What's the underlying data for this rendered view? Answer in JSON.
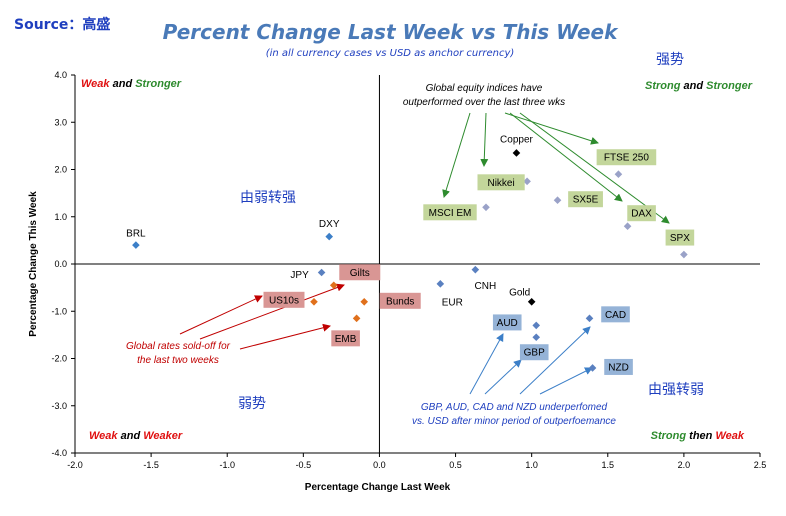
{
  "source": "Source：高盛",
  "chart_data": {
    "type": "scatter",
    "title": "Percent Change Last Week vs This Week",
    "subtitle": "(in all currency cases vs USD as anchor currency)",
    "xlabel": "Percentage Change Last Week",
    "ylabel": "Percentage Change This Week",
    "xlim": [
      -2.0,
      2.5
    ],
    "ylim": [
      -4.0,
      4.0
    ],
    "xticks": [
      "-2.0",
      "-1.5",
      "-1.0",
      "-0.5",
      "0.0",
      "0.5",
      "1.0",
      "1.5",
      "2.0",
      "2.5"
    ],
    "yticks": [
      "4.0",
      "3.0",
      "2.0",
      "1.0",
      "0.0",
      "-1.0",
      "-2.0",
      "-3.0",
      "-4.0"
    ],
    "grid": false,
    "points": [
      {
        "label": "BRL",
        "x": -1.6,
        "y": 0.4,
        "color": "#3c7fc8",
        "boxed": false
      },
      {
        "label": "DXY",
        "x": -0.33,
        "y": 0.58,
        "color": "#3c7fc8",
        "boxed": false
      },
      {
        "label": "JPY",
        "x": -0.38,
        "y": -0.18,
        "color": "#5a80c0",
        "boxed": false
      },
      {
        "label": "US10s",
        "x": -0.43,
        "y": -0.8,
        "color": "#e0701c",
        "boxed": true,
        "box_color": "#d99694"
      },
      {
        "label": "Gilts",
        "x": -0.3,
        "y": -0.45,
        "color": "#e0701c",
        "boxed": true,
        "box_color": "#d99694"
      },
      {
        "label": "Bunds",
        "x": -0.1,
        "y": -0.8,
        "color": "#e0701c",
        "boxed": true,
        "box_color": "#d99694"
      },
      {
        "label": "EMB",
        "x": -0.15,
        "y": -1.15,
        "color": "#e0701c",
        "boxed": true,
        "box_color": "#d99694"
      },
      {
        "label": "EUR",
        "x": 0.4,
        "y": -0.42,
        "color": "#5a80c0",
        "boxed": false
      },
      {
        "label": "CNH",
        "x": 0.63,
        "y": -0.12,
        "color": "#5a80c0",
        "boxed": false
      },
      {
        "label": "Gold",
        "x": 1.0,
        "y": -0.8,
        "color": "#000000",
        "boxed": false
      },
      {
        "label": "Copper",
        "x": 0.9,
        "y": 2.35,
        "color": "#000000",
        "boxed": false
      },
      {
        "label": "Nikkei",
        "x": 0.97,
        "y": 1.75,
        "color": "#9aa2c8",
        "boxed": true,
        "box_color": "#c3d69b"
      },
      {
        "label": "MSCI EM",
        "x": 0.7,
        "y": 1.2,
        "color": "#9aa2c8",
        "boxed": true,
        "box_color": "#c3d69b"
      },
      {
        "label": "SX5E",
        "x": 1.17,
        "y": 1.35,
        "color": "#9aa2c8",
        "boxed": true,
        "box_color": "#c3d69b"
      },
      {
        "label": "FTSE 250",
        "x": 1.57,
        "y": 1.9,
        "color": "#9aa2c8",
        "boxed": true,
        "box_color": "#c3d69b"
      },
      {
        "label": "DAX",
        "x": 1.63,
        "y": 0.8,
        "color": "#9aa2c8",
        "boxed": true,
        "box_color": "#c3d69b"
      },
      {
        "label": "SPX",
        "x": 2.0,
        "y": 0.2,
        "color": "#9aa2c8",
        "boxed": true,
        "box_color": "#c3d69b"
      },
      {
        "label": "AUD",
        "x": 1.03,
        "y": -1.3,
        "color": "#5a80c0",
        "boxed": true,
        "box_color": "#95b3d7"
      },
      {
        "label": "GBP",
        "x": 1.03,
        "y": -1.55,
        "color": "#5a80c0",
        "boxed": true,
        "box_color": "#95b3d7"
      },
      {
        "label": "CAD",
        "x": 1.38,
        "y": -1.15,
        "color": "#5a80c0",
        "boxed": true,
        "box_color": "#95b3d7"
      },
      {
        "label": "NZD",
        "x": 1.4,
        "y": -2.2,
        "color": "#5a80c0",
        "boxed": true,
        "box_color": "#95b3d7"
      }
    ],
    "quadrant_labels": {
      "top_left": [
        {
          "text": "Weak",
          "color": "#e01010"
        },
        {
          "text": " and ",
          "color": "#000000"
        },
        {
          "text": "Stronger",
          "color": "#2e8b2e"
        }
      ],
      "top_right": [
        {
          "text": "Strong",
          "color": "#2e8b2e"
        },
        {
          "text": " and ",
          "color": "#000000"
        },
        {
          "text": "Stronger",
          "color": "#2e8b2e"
        }
      ],
      "bottom_left": [
        {
          "text": "Weak",
          "color": "#e01010"
        },
        {
          "text": " and ",
          "color": "#000000"
        },
        {
          "text": "Weaker",
          "color": "#e01010"
        }
      ],
      "bottom_right": [
        {
          "text": "Strong",
          "color": "#2e8b2e"
        },
        {
          "text": " then ",
          "color": "#000000"
        },
        {
          "text": "Weak",
          "color": "#e01010"
        }
      ]
    },
    "chinese_labels": {
      "strong": "强势",
      "weak_to_strong": "由弱转强",
      "weak": "弱势",
      "strong_to_weak": "由强转弱"
    },
    "annotations": {
      "equity": [
        "Global equity indices have",
        "outperformed over the last three wks"
      ],
      "rates": [
        "Global rates sold-off for",
        "the last two weeks"
      ],
      "fx": [
        "GBP, AUD, CAD and NZD underperfomed",
        "vs. USD after minor period of outperfoemance"
      ]
    },
    "colors": {
      "equity_arrow": "#2e8b2e",
      "rates_arrow": "#c00000",
      "fx_arrow": "#3c7fc8",
      "chinese_text": "#1f3fbf"
    }
  }
}
